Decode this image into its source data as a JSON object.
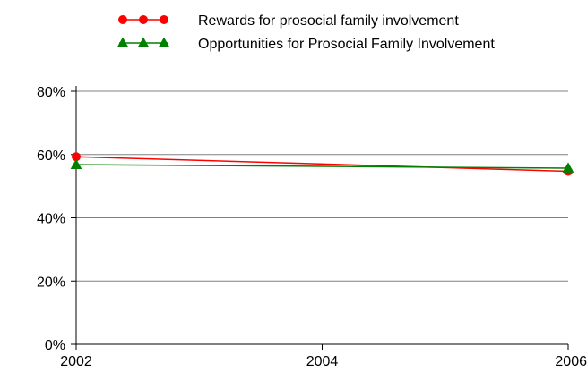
{
  "chart_data": {
    "type": "line",
    "x": [
      "2002",
      "2004",
      "2006"
    ],
    "x_values": [
      2002,
      2004,
      2006
    ],
    "xlim": [
      2002,
      2006
    ],
    "ylim": [
      0,
      80
    ],
    "y_ticks": [
      {
        "value": 0,
        "label": "0%"
      },
      {
        "value": 20,
        "label": "20%"
      },
      {
        "value": 40,
        "label": "40%"
      },
      {
        "value": 60,
        "label": "60%"
      },
      {
        "value": 80,
        "label": "80%"
      }
    ],
    "grid": true,
    "legend_position": "top",
    "series": [
      {
        "name": "Rewards for prosocial family involvement",
        "color": "#ff0000",
        "marker": "circle",
        "points": [
          {
            "x": 2002,
            "y": 59.3
          },
          {
            "x": 2006,
            "y": 54.7
          }
        ]
      },
      {
        "name": "Opportunities for Prosocial Family Involvement",
        "color": "#008000",
        "marker": "triangle",
        "points": [
          {
            "x": 2002,
            "y": 56.8
          },
          {
            "x": 2006,
            "y": 55.7
          }
        ]
      }
    ]
  }
}
